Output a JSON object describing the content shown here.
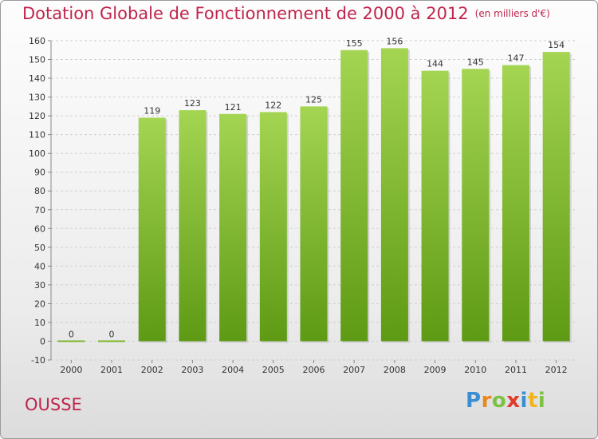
{
  "title": "Dotation Globale de Fonctionnement de 2000 à 2012",
  "unit": "(en milliers d'€)",
  "city": "OUSSE",
  "logo": "Proxiti",
  "colors": {
    "title": "#c0244c",
    "bar_light": "#a4d552",
    "bar_dark": "#5e9a14",
    "grid": "#cfcfcf"
  },
  "chart_data": {
    "type": "bar",
    "title": "Dotation Globale de Fonctionnement de 2000 à 2012",
    "subtitle": "(en milliers d'€)",
    "categories": [
      "2000",
      "2001",
      "2002",
      "2003",
      "2004",
      "2005",
      "2006",
      "2007",
      "2008",
      "2009",
      "2010",
      "2011",
      "2012"
    ],
    "values": [
      0,
      0,
      119,
      123,
      121,
      122,
      125,
      155,
      156,
      144,
      145,
      147,
      154
    ],
    "ylim": [
      -10,
      160
    ],
    "yticks": [
      -10,
      0,
      10,
      20,
      30,
      40,
      50,
      60,
      70,
      80,
      90,
      100,
      110,
      120,
      130,
      140,
      150,
      160
    ],
    "grid": true,
    "data_labels": true
  }
}
